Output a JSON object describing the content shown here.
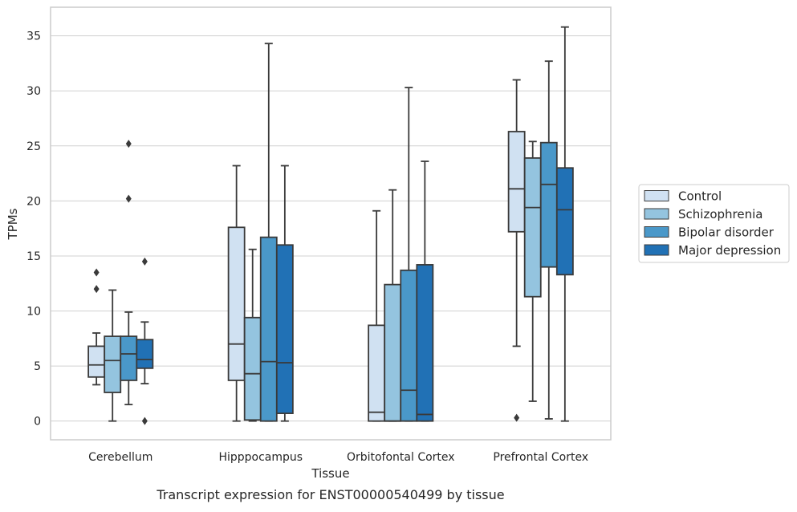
{
  "chart_data": {
    "type": "box",
    "xlabel": "Tissue",
    "ylabel": "TPMs",
    "caption": "Transcript expression for ENST00000540499 by tissue",
    "ylim": [
      -1.7,
      37.6
    ],
    "yticks": [
      0,
      5,
      10,
      15,
      20,
      25,
      30,
      35
    ],
    "grid": true,
    "legend_position": "right",
    "categories": [
      "Cerebellum",
      "Hipppocampus",
      "Orbitofontal Cortex",
      "Prefrontal Cortex"
    ],
    "colors": {
      "Control": "#d0e1f2",
      "Schizophrenia": "#94c4df",
      "Bipolar disorder": "#4a98c9",
      "Major depression": "#2171b5",
      "edge": "#3a3a3a",
      "grid": "#d0d0d0"
    },
    "series": [
      {
        "name": "Control",
        "boxes": [
          {
            "whislo": 3.3,
            "q1": 4.0,
            "med": 5.1,
            "q3": 6.8,
            "whishi": 8.0,
            "fliers": [
              12.0,
              13.5
            ]
          },
          {
            "whislo": 0.0,
            "q1": 3.7,
            "med": 7.0,
            "q3": 17.6,
            "whishi": 23.2,
            "fliers": []
          },
          {
            "whislo": 0.0,
            "q1": 0.0,
            "med": 0.8,
            "q3": 8.7,
            "whishi": 19.1,
            "fliers": []
          },
          {
            "whislo": 6.8,
            "q1": 17.2,
            "med": 21.1,
            "q3": 26.3,
            "whishi": 31.0,
            "fliers": [
              0.3
            ]
          }
        ]
      },
      {
        "name": "Schizophrenia",
        "boxes": [
          {
            "whislo": 0.0,
            "q1": 2.6,
            "med": 5.5,
            "q3": 7.7,
            "whishi": 11.9,
            "fliers": []
          },
          {
            "whislo": 0.0,
            "q1": 0.1,
            "med": 4.3,
            "q3": 9.4,
            "whishi": 15.6,
            "fliers": []
          },
          {
            "whislo": 0.0,
            "q1": 0.0,
            "med": 0.0,
            "q3": 12.4,
            "whishi": 21.0,
            "fliers": []
          },
          {
            "whislo": 1.8,
            "q1": 11.3,
            "med": 19.4,
            "q3": 23.9,
            "whishi": 25.4,
            "fliers": []
          }
        ]
      },
      {
        "name": "Bipolar disorder",
        "boxes": [
          {
            "whislo": 1.5,
            "q1": 3.7,
            "med": 6.1,
            "q3": 7.7,
            "whishi": 9.9,
            "fliers": [
              20.2,
              25.2
            ]
          },
          {
            "whislo": 0.0,
            "q1": 0.0,
            "med": 5.4,
            "q3": 16.7,
            "whishi": 34.3,
            "fliers": []
          },
          {
            "whislo": 0.0,
            "q1": 0.0,
            "med": 2.8,
            "q3": 13.7,
            "whishi": 30.3,
            "fliers": []
          },
          {
            "whislo": 0.2,
            "q1": 14.0,
            "med": 21.5,
            "q3": 25.3,
            "whishi": 32.7,
            "fliers": []
          }
        ]
      },
      {
        "name": "Major depression",
        "boxes": [
          {
            "whislo": 3.4,
            "q1": 4.8,
            "med": 5.6,
            "q3": 7.4,
            "whishi": 9.0,
            "fliers": [
              0.0,
              14.5
            ]
          },
          {
            "whislo": 0.0,
            "q1": 0.7,
            "med": 5.3,
            "q3": 16.0,
            "whishi": 23.2,
            "fliers": []
          },
          {
            "whislo": 0.0,
            "q1": 0.0,
            "med": 0.6,
            "q3": 14.2,
            "whishi": 23.6,
            "fliers": []
          },
          {
            "whislo": 0.0,
            "q1": 13.3,
            "med": 19.2,
            "q3": 23.0,
            "whishi": 35.8,
            "fliers": []
          }
        ]
      }
    ]
  }
}
